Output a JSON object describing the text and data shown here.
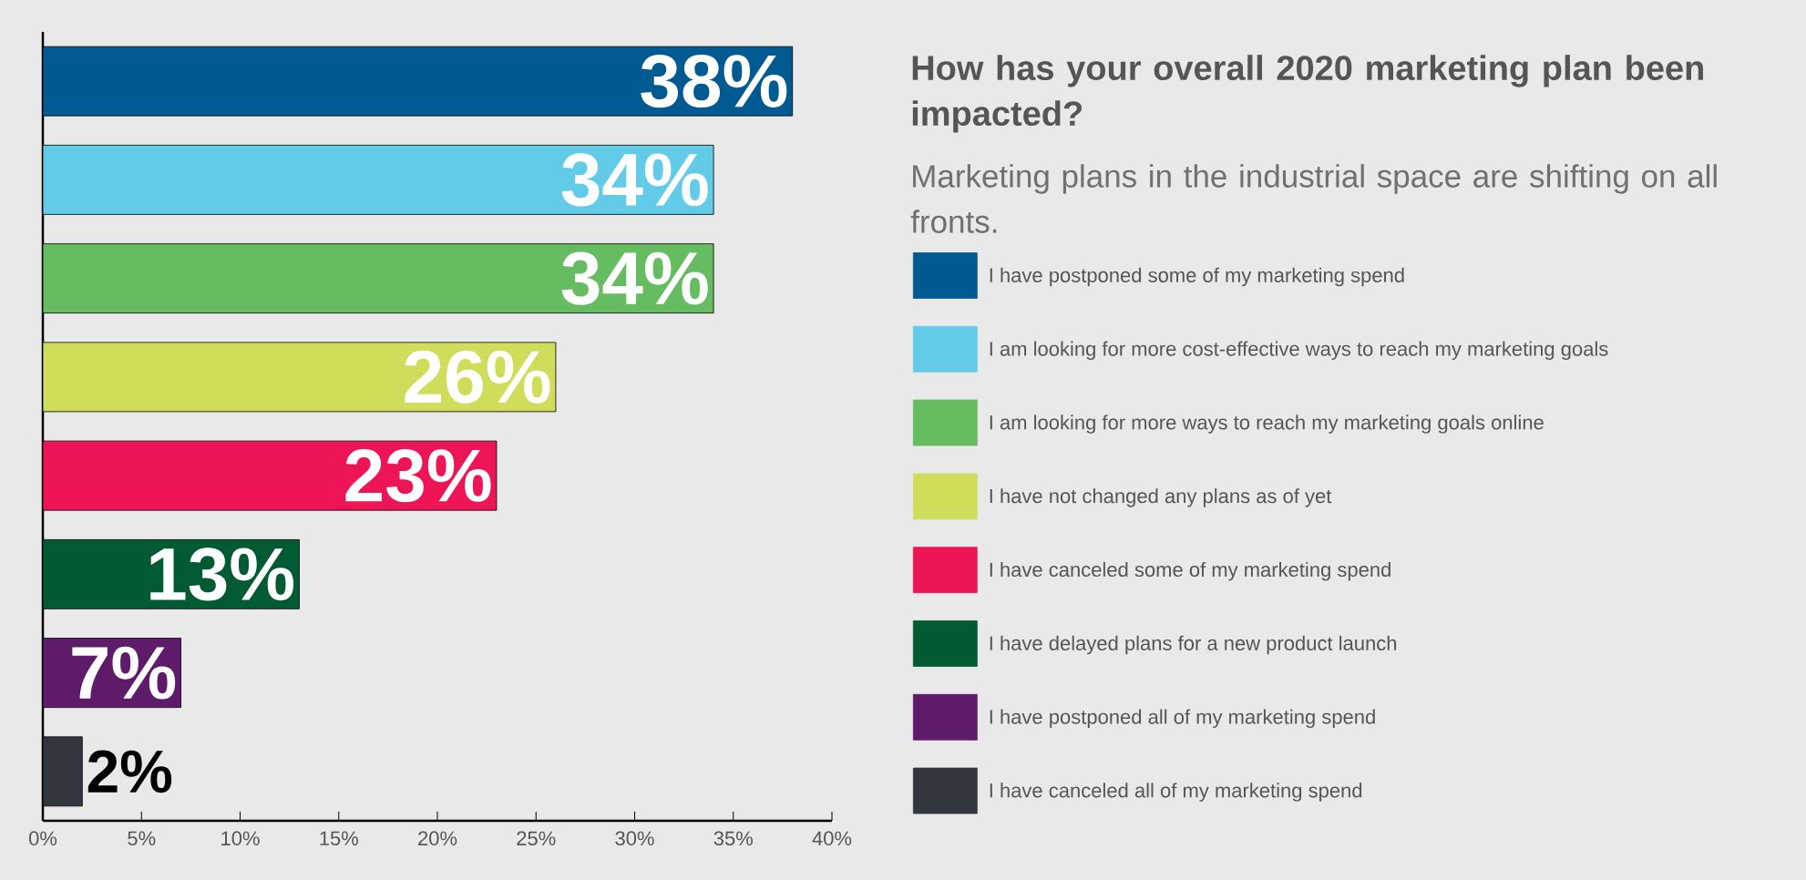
{
  "chart_data": {
    "type": "bar",
    "orientation": "horizontal",
    "title": "How has your overall 2020 marketing plan been impacted?",
    "subtitle": "Marketing plans in the industrial space are shifting on all fronts.",
    "categories": [
      null,
      null,
      null,
      null,
      null,
      null,
      null,
      null
    ],
    "series": [
      {
        "name": "I have postponed some of my marketing spend",
        "color": "#005a92",
        "values": [
          38,
          null,
          null,
          null,
          null,
          null,
          null,
          null
        ],
        "value_labels": [
          "38%",
          null,
          null,
          null,
          null,
          null,
          null,
          null
        ]
      },
      {
        "name": "I am looking for more cost-effective ways to reach my marketing goals",
        "color": "#62cbe8",
        "values": [
          null,
          34,
          null,
          null,
          null,
          null,
          null,
          null
        ],
        "value_labels": [
          null,
          "34%",
          null,
          null,
          null,
          null,
          null,
          null
        ]
      },
      {
        "name": "I am looking for more ways to reach my marketing goals online",
        "color": "#66bc60",
        "values": [
          null,
          null,
          34,
          null,
          null,
          null,
          null,
          null
        ],
        "value_labels": [
          null,
          null,
          "34%",
          null,
          null,
          null,
          null,
          null
        ]
      },
      {
        "name": "I have not changed any plans as of yet",
        "color": "#cfdd5a",
        "values": [
          null,
          null,
          null,
          26,
          null,
          null,
          null,
          null
        ],
        "value_labels": [
          null,
          null,
          null,
          "26%",
          null,
          null,
          null,
          null
        ]
      },
      {
        "name": "I have canceled some of my marketing spend",
        "color": "#ee1556",
        "values": [
          null,
          null,
          null,
          null,
          23,
          null,
          null,
          null
        ],
        "value_labels": [
          null,
          null,
          null,
          null,
          "23%",
          null,
          null,
          null
        ]
      },
      {
        "name": "I have delayed plans for a new product launch",
        "color": "#005a32",
        "values": [
          null,
          null,
          null,
          null,
          null,
          13,
          null,
          null
        ],
        "value_labels": [
          null,
          null,
          null,
          null,
          null,
          "13%",
          null,
          null
        ]
      },
      {
        "name": "I have postponed all of my marketing spend",
        "color": "#5d1b6a",
        "values": [
          null,
          null,
          null,
          null,
          null,
          null,
          7,
          null
        ],
        "value_labels": [
          null,
          null,
          null,
          null,
          null,
          null,
          "7%",
          null
        ]
      },
      {
        "name": "I have canceled all of my marketing spend",
        "color": "#32363f",
        "values": [
          null,
          null,
          null,
          null,
          null,
          null,
          null,
          2
        ],
        "value_labels": [
          null,
          null,
          null,
          null,
          null,
          null,
          null,
          "2%"
        ]
      }
    ],
    "xlim": [
      0,
      40
    ],
    "xticks": [
      {
        "value": 0,
        "label": "0%"
      },
      {
        "value": 5,
        "label": "5%"
      },
      {
        "value": 10,
        "label": "10%"
      },
      {
        "value": 15,
        "label": "15%"
      },
      {
        "value": 20,
        "label": "20%"
      },
      {
        "value": 25,
        "label": "25%"
      },
      {
        "value": 30,
        "label": "30%"
      },
      {
        "value": 35,
        "label": "35%"
      },
      {
        "value": 40,
        "label": "40%"
      }
    ],
    "legend": "right",
    "grid": false
  }
}
